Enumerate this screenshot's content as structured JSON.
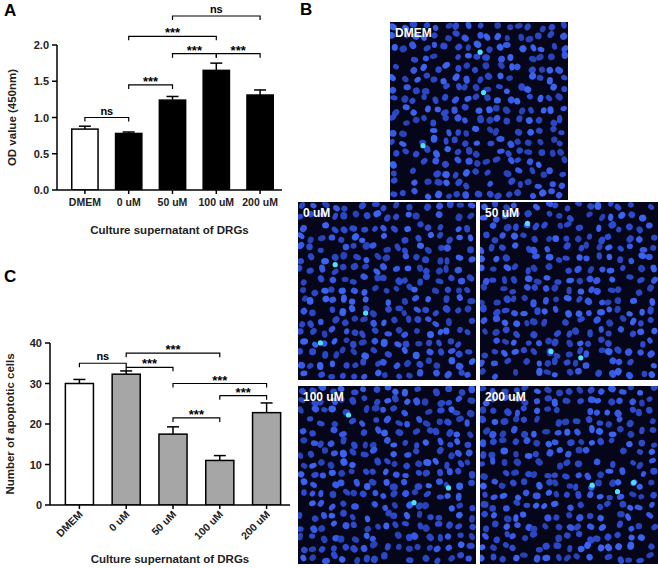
{
  "chart_data": [
    {
      "type": "bar",
      "title": "A",
      "ylabel": "OD value (450nm)",
      "xlabel": "Culture supernatant of DRGs",
      "categories": [
        "DMEM",
        "0 uM",
        "50 uM",
        "100 uM",
        "200 uM"
      ],
      "values": [
        0.84,
        0.78,
        1.24,
        1.65,
        1.31
      ],
      "errors": [
        0.04,
        0.02,
        0.05,
        0.1,
        0.07
      ],
      "colors": [
        "#ffffff",
        "#000000",
        "#000000",
        "#000000",
        "#000000"
      ],
      "ylim": [
        0,
        2
      ],
      "yticks": [
        {
          "value": 0,
          "label": "0.0"
        },
        {
          "value": 0.5,
          "label": "0.5"
        },
        {
          "value": 1,
          "label": "1.0"
        },
        {
          "value": 1.5,
          "label": "1.5"
        },
        {
          "value": 2,
          "label": "2.0"
        }
      ],
      "annotations": [
        {
          "text": "ns",
          "from": 0,
          "to": 1,
          "y": 1.0
        },
        {
          "text": "***",
          "from": 1,
          "to": 2,
          "y": 1.45
        },
        {
          "text": "***",
          "from": 2,
          "to": 3,
          "y": 1.88
        },
        {
          "text": "***",
          "from": 3,
          "to": 4,
          "y": 1.88
        },
        {
          "text": "***",
          "from": 1,
          "to": 3,
          "y": 2.12
        },
        {
          "text": "ns",
          "from": 2,
          "to": 4,
          "y": 2.4
        }
      ]
    },
    {
      "type": "bar",
      "title": "C",
      "ylabel": "Number of apoptotic cells",
      "xlabel": "Culture supernatant of DRGs",
      "categories": [
        "DMEM",
        "0 uM",
        "50 uM",
        "100 uM",
        "200 uM"
      ],
      "values": [
        30,
        32.3,
        17.5,
        11,
        22.8
      ],
      "errors": [
        1,
        0.8,
        1.8,
        1.2,
        2.4
      ],
      "colors": [
        "#ffffff",
        "#a6a6a6",
        "#a6a6a6",
        "#a6a6a6",
        "#a6a6a6"
      ],
      "ylim": [
        0,
        40
      ],
      "yticks": [
        0,
        10,
        20,
        30,
        40
      ],
      "annotations": [
        {
          "text": "ns",
          "from": 0,
          "to": 1,
          "y": 35
        },
        {
          "text": "***",
          "from": 1,
          "to": 2,
          "y": 34
        },
        {
          "text": "***",
          "from": 1,
          "to": 3,
          "y": 37.5
        },
        {
          "text": "***",
          "from": 2,
          "to": 4,
          "y": 30
        },
        {
          "text": "***",
          "from": 2,
          "to": 3,
          "y": 21.5
        },
        {
          "text": "***",
          "from": 3,
          "to": 4,
          "y": 27
        }
      ]
    }
  ],
  "images": {
    "title": "B",
    "panels": [
      "DMEM",
      "0 uM",
      "50 uM",
      "100 uM",
      "200 uM"
    ]
  }
}
